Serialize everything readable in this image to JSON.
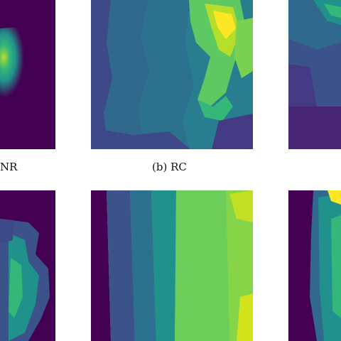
{
  "captions": {
    "left_partial": "NR",
    "middle": "(b) RC"
  },
  "colormap": [
    "#440154",
    "#3b528b",
    "#21918c",
    "#5ec962",
    "#fde725"
  ]
}
